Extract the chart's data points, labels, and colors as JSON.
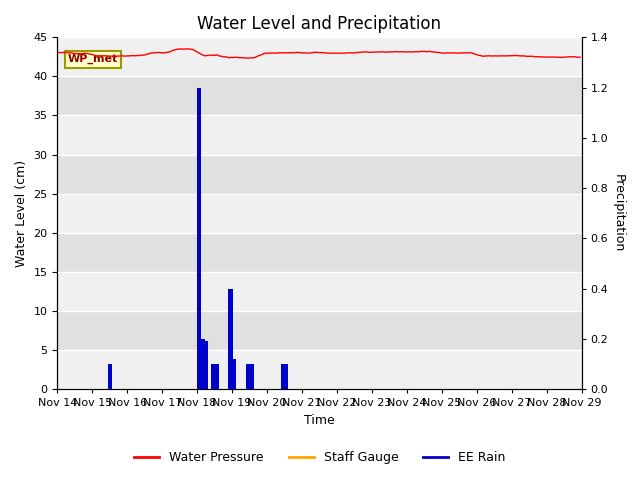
{
  "title": "Water Level and Precipitation",
  "xlabel": "Time",
  "ylabel_left": "Water Level (cm)",
  "ylabel_right": "Precipitation",
  "annotation_text": "WP_met",
  "left_ylim": [
    0,
    45
  ],
  "right_ylim": [
    0.0,
    1.4
  ],
  "left_yticks": [
    0,
    5,
    10,
    15,
    20,
    25,
    30,
    35,
    40,
    45
  ],
  "right_yticks": [
    0.0,
    0.2,
    0.4,
    0.6,
    0.8,
    1.0,
    1.2,
    1.4
  ],
  "x_tick_labels": [
    "Nov 14",
    "Nov 15",
    "Nov 16",
    "Nov 17",
    "Nov 18",
    "Nov 19",
    "Nov 20",
    "Nov 21",
    "Nov 22",
    "Nov 23",
    "Nov 24",
    "Nov 25",
    "Nov 26",
    "Nov 27",
    "Nov 28",
    "Nov 29"
  ],
  "water_pressure_color": "#ff0000",
  "staff_gauge_color": "#ffa500",
  "ee_rain_color": "#0000cc",
  "band_color_light": "#f0f0f0",
  "band_color_dark": "#e0e0e0",
  "legend_items": [
    "Water Pressure",
    "Staff Gauge",
    "EE Rain"
  ],
  "rain_events_days": [
    1.5,
    4.05,
    4.15,
    4.25,
    4.45,
    4.55,
    4.95,
    5.05,
    5.45,
    5.55,
    6.45,
    6.55
  ],
  "rain_vals_precip": [
    0.1,
    1.2,
    0.2,
    0.19,
    0.1,
    0.1,
    0.4,
    0.12,
    0.1,
    0.1,
    0.1,
    0.1
  ],
  "wp_base": 43.0,
  "wp_seed": 42
}
